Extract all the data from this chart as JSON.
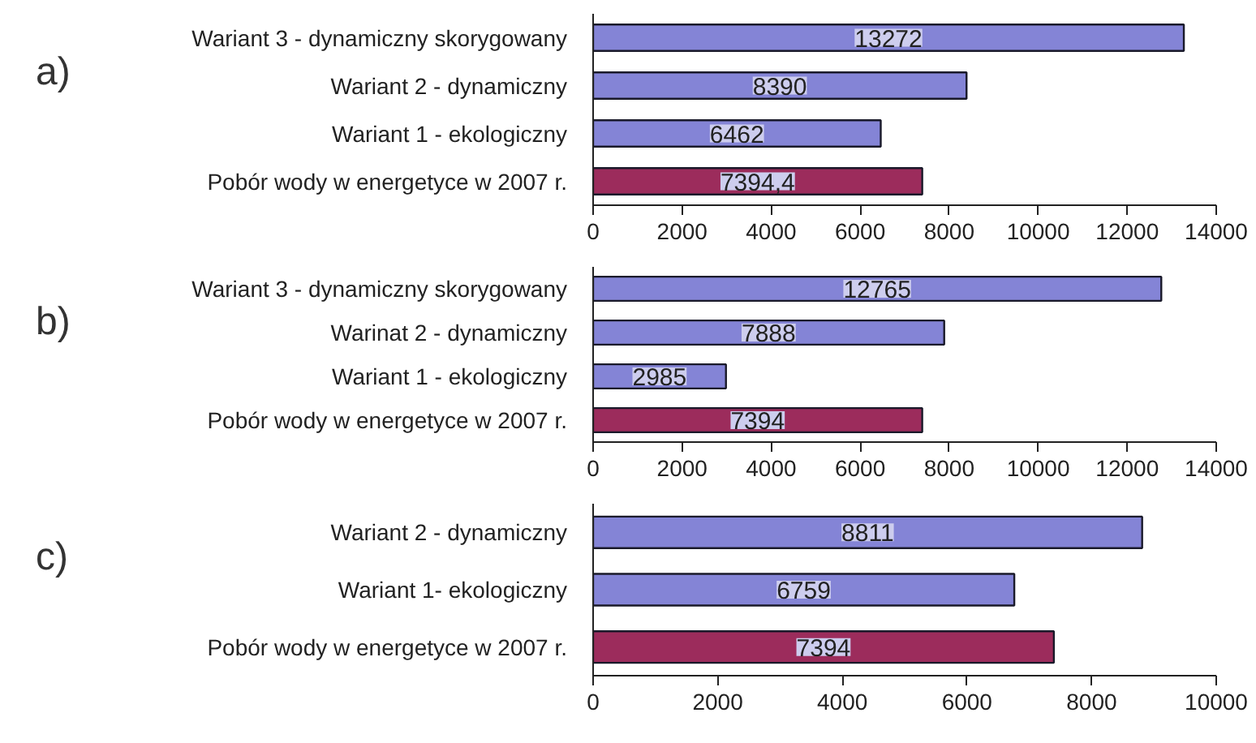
{
  "chart_data": [
    {
      "type": "bar",
      "orientation": "horizontal",
      "title": "a)",
      "categories": [
        "Wariant 3 - dynamiczny skorygowany",
        "Wariant 2 - dynamiczny",
        "Wariant 1 - ekologiczny",
        "Pobór wody w energetyce w 2007 r."
      ],
      "values": [
        13272,
        8390,
        6462,
        7394.4
      ],
      "colors": [
        "#8484d6",
        "#8484d6",
        "#8484d6",
        "#9c2c5c"
      ],
      "value_labels": [
        "13272",
        "8390",
        "6462",
        "7394,4"
      ],
      "xlim": [
        0,
        14000
      ],
      "xticks": [
        0,
        2000,
        4000,
        6000,
        8000,
        10000,
        12000,
        14000
      ],
      "grid": false
    },
    {
      "type": "bar",
      "orientation": "horizontal",
      "title": "b)",
      "categories": [
        "Wariant 3 - dynamiczny skorygowany",
        "Warinat 2 - dynamiczny",
        "Wariant 1 - ekologiczny",
        "Pobór wody w energetyce w 2007 r."
      ],
      "values": [
        12765,
        7888,
        2985,
        7394
      ],
      "colors": [
        "#8484d6",
        "#8484d6",
        "#8484d6",
        "#9c2c5c"
      ],
      "data_labels": true,
      "xlim": [
        0,
        14000
      ],
      "xticks": [
        0,
        2000,
        4000,
        6000,
        8000,
        10000,
        12000,
        14000
      ],
      "grid": false
    },
    {
      "type": "bar",
      "orientation": "horizontal",
      "title": "c)",
      "categories": [
        "Wariant 2 - dynamiczny",
        "Wariant 1- ekologiczny",
        "Pobór wody w energetyce w 2007 r."
      ],
      "values": [
        8811,
        6759,
        7394
      ],
      "colors": [
        "#8484d6",
        "#8484d6",
        "#9c2c5c"
      ],
      "data_labels": true,
      "xlim": [
        0,
        10000
      ],
      "xticks": [
        0,
        2000,
        4000,
        6000,
        8000,
        10000
      ],
      "grid": false
    }
  ]
}
